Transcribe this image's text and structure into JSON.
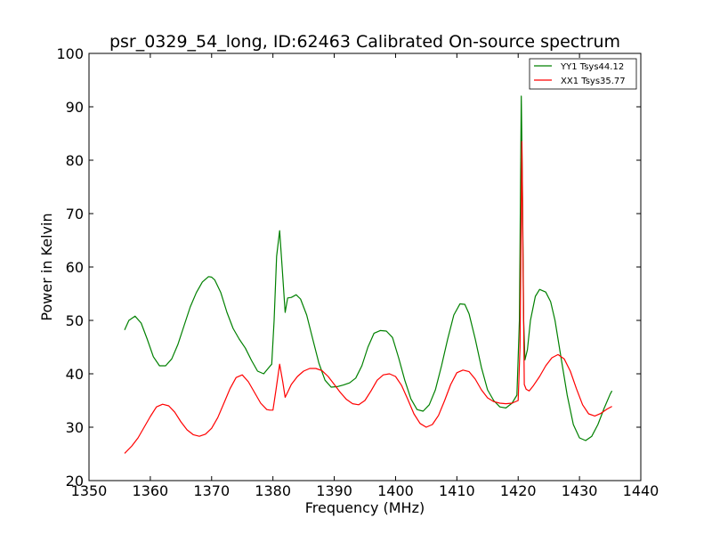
{
  "chart_data": {
    "type": "line",
    "title": "psr_0329_54_long, ID:62463 Calibrated On-source spectrum",
    "xlabel": "Frequency (MHz)",
    "ylabel": "Power in Kelvin",
    "xlim": [
      1350,
      1440
    ],
    "ylim": [
      20,
      100
    ],
    "xticks": [
      1350,
      1360,
      1370,
      1380,
      1390,
      1400,
      1410,
      1420,
      1430,
      1440
    ],
    "yticks": [
      20,
      30,
      40,
      50,
      60,
      70,
      80,
      90,
      100
    ],
    "grid": false,
    "legend_position": "top-right",
    "series": [
      {
        "name": "YY1 Tsys44.12",
        "color": "#008000",
        "x": [
          1355.8,
          1356.5,
          1357.5,
          1358.5,
          1359.5,
          1360.5,
          1361.5,
          1362.5,
          1363.5,
          1364.5,
          1365.5,
          1366.5,
          1367.5,
          1368.5,
          1369.5,
          1370.0,
          1370.5,
          1371.5,
          1372.5,
          1373.5,
          1374.5,
          1375.5,
          1376.5,
          1377.5,
          1378.5,
          1379.2,
          1379.8,
          1380.2,
          1380.6,
          1381.1,
          1381.5,
          1382.0,
          1382.4,
          1383.0,
          1383.8,
          1384.5,
          1385.5,
          1386.5,
          1387.5,
          1388.5,
          1389.5,
          1390.5,
          1391.5,
          1392.5,
          1393.5,
          1394.5,
          1395.5,
          1396.5,
          1397.5,
          1398.5,
          1399.5,
          1400.5,
          1401.5,
          1402.5,
          1403.5,
          1404.5,
          1405.5,
          1406.5,
          1407.5,
          1408.5,
          1409.5,
          1410.5,
          1411.3,
          1412.0,
          1413.0,
          1414.0,
          1415.0,
          1416.0,
          1417.0,
          1418.0,
          1419.0,
          1419.8,
          1420.2,
          1420.5,
          1420.7,
          1420.9,
          1421.1,
          1421.5,
          1422.0,
          1422.8,
          1423.5,
          1424.5,
          1425.3,
          1426.0,
          1427.0,
          1428.0,
          1429.0,
          1430.0,
          1431.0,
          1432.0,
          1433.0,
          1434.0,
          1435.0,
          1435.3
        ],
        "values": [
          48.2,
          50.0,
          50.8,
          49.5,
          46.5,
          43.2,
          41.5,
          41.5,
          42.8,
          45.5,
          49.0,
          52.5,
          55.2,
          57.2,
          58.2,
          58.1,
          57.6,
          55.2,
          51.5,
          48.5,
          46.5,
          44.8,
          42.5,
          40.5,
          40.0,
          41.0,
          41.8,
          50.0,
          62.0,
          66.8,
          60.0,
          51.5,
          54.2,
          54.3,
          54.8,
          54.0,
          51.0,
          46.5,
          42.0,
          38.8,
          37.5,
          37.6,
          37.9,
          38.3,
          39.2,
          41.5,
          45.0,
          47.6,
          48.1,
          48.0,
          46.8,
          43.0,
          38.8,
          35.3,
          33.3,
          33.0,
          34.2,
          37.0,
          41.5,
          46.5,
          51.0,
          53.1,
          53.0,
          51.2,
          46.5,
          41.2,
          37.0,
          35.0,
          33.8,
          33.6,
          34.5,
          36.0,
          50.0,
          92.0,
          75.0,
          50.0,
          42.6,
          44.5,
          50.0,
          54.5,
          55.8,
          55.3,
          53.5,
          50.0,
          43.0,
          36.0,
          30.5,
          28.0,
          27.5,
          28.3,
          30.5,
          33.5,
          36.2,
          36.8
        ]
      },
      {
        "name": "XX1 Tsys35.77",
        "color": "#ff0000",
        "x": [
          1355.8,
          1357.0,
          1358.0,
          1359.0,
          1360.0,
          1361.0,
          1362.0,
          1363.0,
          1364.0,
          1365.0,
          1366.0,
          1367.0,
          1368.0,
          1369.0,
          1370.0,
          1371.0,
          1372.0,
          1373.0,
          1374.0,
          1375.0,
          1376.0,
          1377.0,
          1378.0,
          1379.0,
          1379.5,
          1380.0,
          1380.5,
          1381.1,
          1381.6,
          1382.0,
          1382.5,
          1383.0,
          1384.0,
          1385.0,
          1386.0,
          1387.0,
          1388.0,
          1389.0,
          1390.0,
          1391.0,
          1392.0,
          1393.0,
          1394.0,
          1395.0,
          1396.0,
          1397.0,
          1398.0,
          1399.0,
          1400.0,
          1401.0,
          1402.0,
          1403.0,
          1404.0,
          1405.0,
          1406.0,
          1407.0,
          1408.0,
          1409.0,
          1410.0,
          1411.0,
          1412.0,
          1413.0,
          1414.0,
          1415.0,
          1416.0,
          1417.0,
          1418.0,
          1419.0,
          1420.0,
          1420.3,
          1420.6,
          1420.8,
          1421.0,
          1421.3,
          1421.8,
          1422.5,
          1423.5,
          1424.5,
          1425.5,
          1426.5,
          1427.5,
          1428.5,
          1429.5,
          1430.5,
          1431.5,
          1432.5,
          1433.5,
          1434.5,
          1435.3
        ],
        "values": [
          25.1,
          26.5,
          28.0,
          30.0,
          32.0,
          33.8,
          34.3,
          34.0,
          32.8,
          31.0,
          29.5,
          28.6,
          28.3,
          28.7,
          29.8,
          31.8,
          34.5,
          37.2,
          39.3,
          39.8,
          38.5,
          36.5,
          34.5,
          33.3,
          33.2,
          33.2,
          37.0,
          41.8,
          38.5,
          35.6,
          36.8,
          38.0,
          39.5,
          40.5,
          41.0,
          41.0,
          40.6,
          39.5,
          38.0,
          36.5,
          35.2,
          34.4,
          34.2,
          35.0,
          36.8,
          38.8,
          39.8,
          40.0,
          39.5,
          37.8,
          35.2,
          32.5,
          30.7,
          30.0,
          30.5,
          32.2,
          35.0,
          38.0,
          40.2,
          40.7,
          40.4,
          39.0,
          37.0,
          35.5,
          34.8,
          34.5,
          34.4,
          34.5,
          35.0,
          45.0,
          83.5,
          60.0,
          38.0,
          37.1,
          36.8,
          37.8,
          39.5,
          41.5,
          43.0,
          43.6,
          42.8,
          40.5,
          37.2,
          34.2,
          32.5,
          32.1,
          32.6,
          33.4,
          33.9
        ]
      }
    ]
  }
}
